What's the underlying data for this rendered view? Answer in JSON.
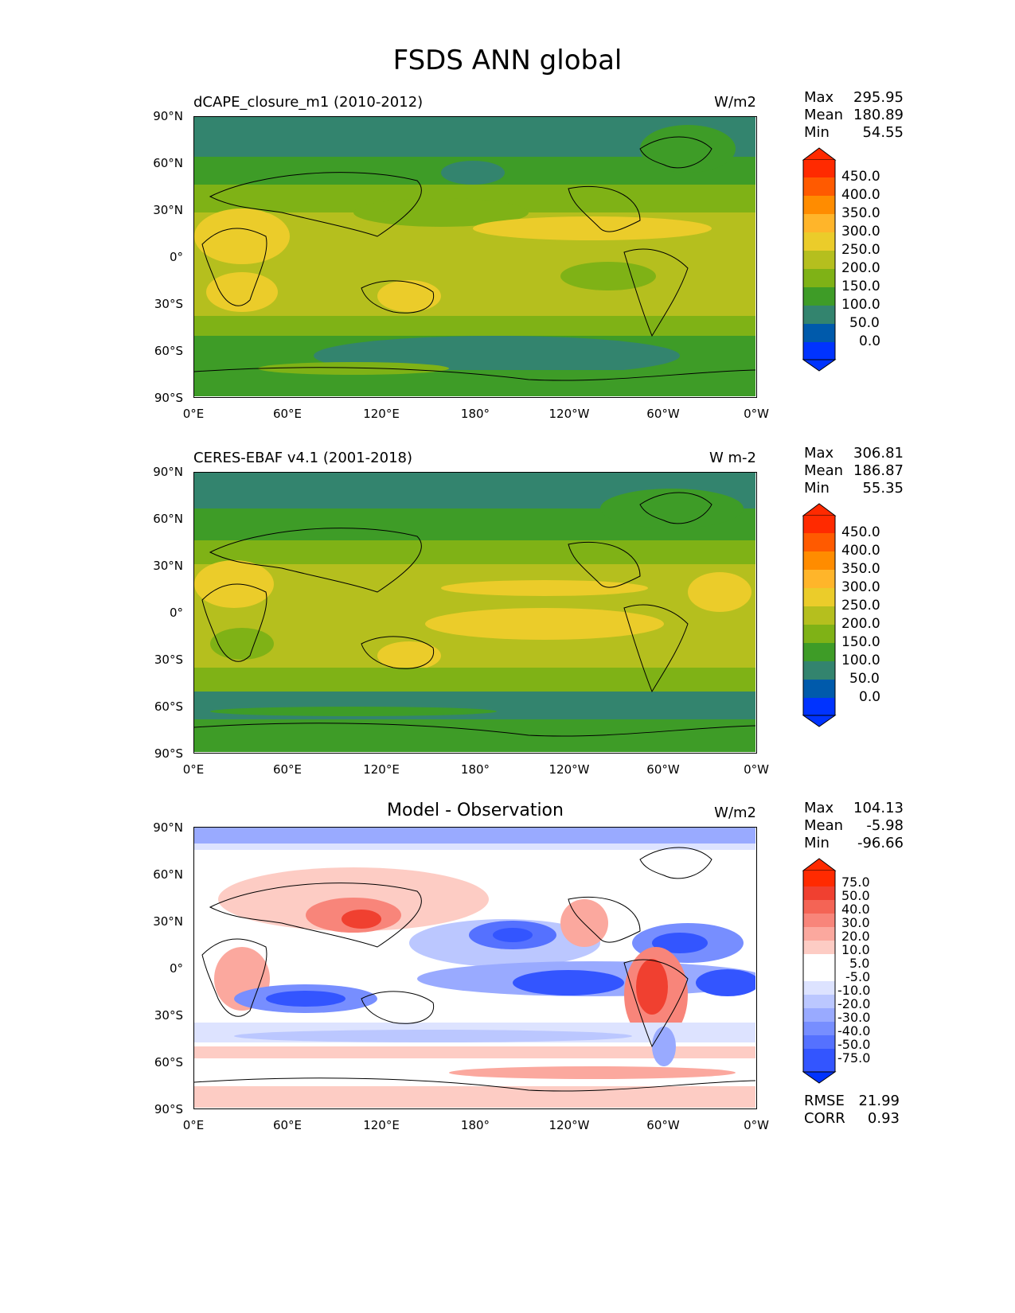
{
  "title": "FSDS ANN global",
  "panels": [
    {
      "title": "dCAPE_closure_m1 (2010-2012)",
      "units": "W/m2",
      "stats": [
        {
          "label": "Max",
          "value": "295.95"
        },
        {
          "label": "Mean",
          "value": "180.89"
        },
        {
          "label": "Min",
          "value": "54.55"
        }
      ],
      "colorbar_labels": [
        "450.0",
        "400.0",
        "350.0",
        "300.0",
        "250.0",
        "200.0",
        "150.0",
        "100.0",
        "50.0",
        "0.0"
      ]
    },
    {
      "title": "CERES-EBAF v4.1 (2001-2018)",
      "units": "W m-2",
      "stats": [
        {
          "label": "Max",
          "value": "306.81"
        },
        {
          "label": "Mean",
          "value": "186.87"
        },
        {
          "label": "Min",
          "value": "55.35"
        }
      ],
      "colorbar_labels": [
        "450.0",
        "400.0",
        "350.0",
        "300.0",
        "250.0",
        "200.0",
        "150.0",
        "100.0",
        "50.0",
        "0.0"
      ]
    },
    {
      "title": "Model - Observation",
      "units": "W/m2",
      "stats": [
        {
          "label": "Max",
          "value": "104.13"
        },
        {
          "label": "Mean",
          "value": "-5.98"
        },
        {
          "label": "Min",
          "value": "-96.66"
        }
      ],
      "colorbar_labels": [
        "75.0",
        "50.0",
        "40.0",
        "30.0",
        "20.0",
        "10.0",
        "5.0",
        "-5.0",
        "-10.0",
        "-20.0",
        "-30.0",
        "-40.0",
        "-50.0",
        "-75.0"
      ],
      "metrics": [
        {
          "label": "RMSE",
          "value": "21.99"
        },
        {
          "label": "CORR",
          "value": "0.93"
        }
      ]
    }
  ],
  "y_ticks": [
    "90°N",
    "60°N",
    "30°N",
    "0°",
    "30°S",
    "60°S",
    "90°S"
  ],
  "x_ticks": [
    "0°E",
    "60°E",
    "120°E",
    "180°",
    "120°W",
    "60°W",
    "0°W"
  ],
  "colors": {
    "abs_scale": [
      "#ff2a00",
      "#ff5a00",
      "#ff8c00",
      "#ffb52a",
      "#ebcc2a",
      "#b5bf1e",
      "#7fb216",
      "#3e9c27",
      "#33846e",
      "#005aab",
      "#0033ff"
    ],
    "diff_scale": [
      "#ff2a00",
      "#f04030",
      "#f46455",
      "#f8857a",
      "#fba89e",
      "#fdccc4",
      "#ffffff",
      "#ffffff",
      "#dde3ff",
      "#bbc7ff",
      "#99aaff",
      "#778eff",
      "#5571ff",
      "#3355ff",
      "#0033ff"
    ]
  }
}
